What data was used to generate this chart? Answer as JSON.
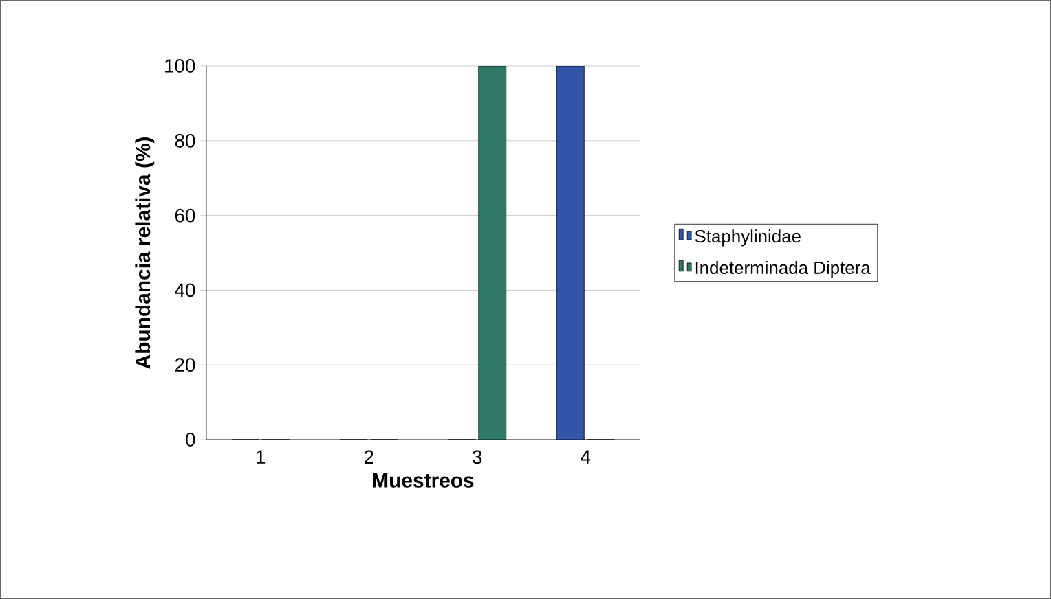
{
  "chart_data": {
    "type": "bar",
    "xlabel": "Muestreos",
    "ylabel": "Abundancia relativa (%)",
    "categories": [
      "1",
      "2",
      "3",
      "4"
    ],
    "series": [
      {
        "name": "Staphylinidae",
        "color": "#3355a8",
        "values": [
          0,
          0,
          0,
          100
        ]
      },
      {
        "name": "Indeterminada Diptera",
        "color": "#2e7a66",
        "values": [
          0,
          0,
          100,
          0
        ]
      }
    ],
    "ylim": [
      0,
      100
    ],
    "yticks": [
      0,
      20,
      40,
      60,
      80,
      100
    ],
    "grid": "y",
    "legend": "right"
  }
}
